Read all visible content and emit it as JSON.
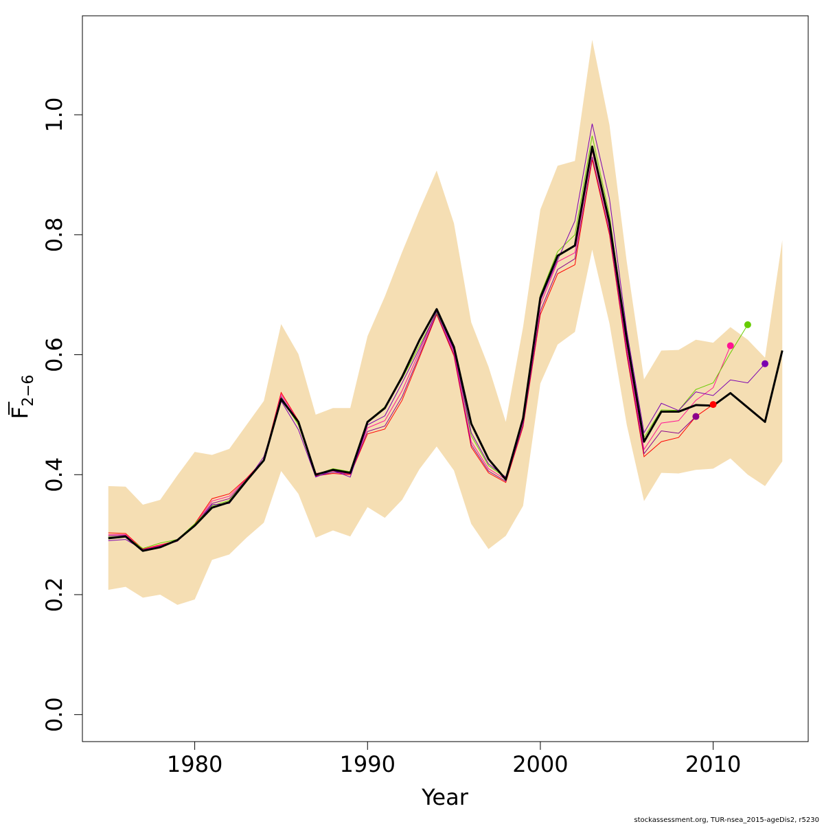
{
  "chart_data": {
    "type": "line",
    "xlabel": "Year",
    "ylabel_main": "F",
    "ylabel_sub": "2−6",
    "footer": "stockassessment.org, TUR-nsea_2015-ageDis2, r5230",
    "xlim": [
      1973.5,
      2015.5
    ],
    "ylim": [
      -0.045,
      1.165
    ],
    "x_ticks": [
      1980,
      1990,
      2000,
      2010
    ],
    "x_tick_labels": [
      "1980",
      "1990",
      "2000",
      "2010"
    ],
    "y_ticks": [
      0.0,
      0.2,
      0.4,
      0.6,
      0.8,
      1.0
    ],
    "y_tick_labels": [
      "0.0",
      "0.2",
      "0.4",
      "0.6",
      "0.8",
      "1.0"
    ],
    "band_color": "#F5DEB3",
    "confidence_band": {
      "x": [
        1975,
        1976,
        1977,
        1978,
        1979,
        1980,
        1981,
        1982,
        1983,
        1984,
        1985,
        1986,
        1987,
        1988,
        1989,
        1990,
        1991,
        1992,
        1993,
        1994,
        1995,
        1996,
        1997,
        1998,
        1999,
        2000,
        2001,
        2002,
        2003,
        2004,
        2005,
        2006,
        2007,
        2008,
        2009,
        2010,
        2011,
        2012,
        2013,
        2014
      ],
      "lower": [
        0.208,
        0.213,
        0.195,
        0.2,
        0.183,
        0.192,
        0.258,
        0.267,
        0.295,
        0.32,
        0.406,
        0.368,
        0.295,
        0.307,
        0.297,
        0.346,
        0.328,
        0.358,
        0.409,
        0.447,
        0.407,
        0.318,
        0.276,
        0.298,
        0.348,
        0.552,
        0.617,
        0.638,
        0.775,
        0.652,
        0.483,
        0.356,
        0.403,
        0.402,
        0.408,
        0.41,
        0.427,
        0.4,
        0.381,
        0.422
      ],
      "upper": [
        0.381,
        0.38,
        0.35,
        0.358,
        0.399,
        0.438,
        0.433,
        0.443,
        0.483,
        0.523,
        0.651,
        0.601,
        0.5,
        0.511,
        0.511,
        0.631,
        0.697,
        0.771,
        0.841,
        0.907,
        0.819,
        0.654,
        0.58,
        0.488,
        0.646,
        0.842,
        0.915,
        0.923,
        1.125,
        0.983,
        0.755,
        0.559,
        0.607,
        0.608,
        0.625,
        0.62,
        0.646,
        0.625,
        0.595,
        0.791
      ]
    },
    "main_series": {
      "color": "#000000",
      "x": [
        1975,
        1976,
        1977,
        1978,
        1979,
        1980,
        1981,
        1982,
        1983,
        1984,
        1985,
        1986,
        1987,
        1988,
        1989,
        1990,
        1991,
        1992,
        1993,
        1994,
        1995,
        1996,
        1997,
        1998,
        1999,
        2000,
        2001,
        2002,
        2003,
        2004,
        2005,
        2006,
        2007,
        2008,
        2009,
        2010,
        2011,
        2012,
        2013,
        2014
      ],
      "y": [
        0.294,
        0.297,
        0.273,
        0.279,
        0.291,
        0.315,
        0.345,
        0.354,
        0.39,
        0.424,
        0.526,
        0.488,
        0.4,
        0.408,
        0.403,
        0.488,
        0.511,
        0.563,
        0.624,
        0.676,
        0.613,
        0.485,
        0.426,
        0.392,
        0.494,
        0.695,
        0.765,
        0.782,
        0.947,
        0.82,
        0.626,
        0.455,
        0.505,
        0.505,
        0.516,
        0.515,
        0.536,
        0.512,
        0.488,
        0.607
      ]
    },
    "retro_series": [
      {
        "color": "#FF0000",
        "x": [
          1975,
          1976,
          1977,
          1978,
          1979,
          1980,
          1981,
          1982,
          1983,
          1984,
          1985,
          1986,
          1987,
          1988,
          1989,
          1990,
          1991,
          1992,
          1993,
          1994,
          1995,
          1996,
          1997,
          1998,
          1999,
          2000,
          2001,
          2002,
          2003,
          2004,
          2005,
          2006,
          2007,
          2008,
          2009,
          2010
        ],
        "y": [
          0.303,
          0.302,
          0.276,
          0.283,
          0.29,
          0.318,
          0.36,
          0.368,
          0.394,
          0.425,
          0.537,
          0.49,
          0.398,
          0.402,
          0.4,
          0.468,
          0.476,
          0.524,
          0.595,
          0.667,
          0.598,
          0.446,
          0.403,
          0.387,
          0.48,
          0.667,
          0.735,
          0.75,
          0.925,
          0.8,
          0.6,
          0.43,
          0.455,
          0.462,
          0.497,
          0.517
        ],
        "end_x": 2010,
        "end_y": 0.517
      },
      {
        "color": "#8B008B",
        "x": [
          1975,
          1976,
          1977,
          1978,
          1979,
          1980,
          1981,
          1982,
          1983,
          1984,
          1985,
          1986,
          1987,
          1988,
          1989,
          1990,
          1991,
          1992,
          1993,
          1994,
          1995,
          1996,
          1997,
          1998,
          1999,
          2000,
          2001,
          2002,
          2003,
          2004,
          2005,
          2006,
          2007,
          2008,
          2009
        ],
        "y": [
          0.298,
          0.299,
          0.274,
          0.281,
          0.289,
          0.316,
          0.352,
          0.36,
          0.392,
          0.424,
          0.53,
          0.487,
          0.397,
          0.404,
          0.401,
          0.472,
          0.481,
          0.53,
          0.599,
          0.669,
          0.601,
          0.45,
          0.406,
          0.389,
          0.483,
          0.673,
          0.742,
          0.76,
          0.93,
          0.805,
          0.605,
          0.435,
          0.473,
          0.469,
          0.497
        ],
        "end_x": 2009,
        "end_y": 0.497
      },
      {
        "color": "#FF1493",
        "x": [
          1975,
          1976,
          1977,
          1978,
          1979,
          1980,
          1981,
          1982,
          1983,
          1984,
          1985,
          1986,
          1987,
          1988,
          1989,
          1990,
          1991,
          1992,
          1993,
          1994,
          1995,
          1996,
          1997,
          1998,
          1999,
          2000,
          2001,
          2002,
          2003,
          2004,
          2005,
          2006,
          2007,
          2008,
          2009,
          2010,
          2011
        ],
        "y": [
          0.3,
          0.3,
          0.275,
          0.282,
          0.29,
          0.317,
          0.356,
          0.364,
          0.393,
          0.425,
          0.534,
          0.489,
          0.402,
          0.406,
          0.401,
          0.478,
          0.49,
          0.54,
          0.605,
          0.672,
          0.605,
          0.455,
          0.41,
          0.392,
          0.488,
          0.683,
          0.755,
          0.77,
          0.94,
          0.812,
          0.612,
          0.442,
          0.486,
          0.49,
          0.524,
          0.545,
          0.615
        ],
        "end_x": 2011,
        "end_y": 0.615
      },
      {
        "color": "#66CC00",
        "x": [
          1975,
          1976,
          1977,
          1978,
          1979,
          1980,
          1981,
          1982,
          1983,
          1984,
          1985,
          1986,
          1987,
          1988,
          1989,
          1990,
          1991,
          1992,
          1993,
          1994,
          1995,
          1996,
          1997,
          1998,
          1999,
          2000,
          2001,
          2002,
          2003,
          2004,
          2005,
          2006,
          2007,
          2008,
          2009,
          2010,
          2011,
          2012
        ],
        "y": [
          0.296,
          0.297,
          0.277,
          0.286,
          0.292,
          0.318,
          0.348,
          0.357,
          0.392,
          0.423,
          0.528,
          0.483,
          0.4,
          0.41,
          0.405,
          0.489,
          0.513,
          0.56,
          0.615,
          0.67,
          0.61,
          0.465,
          0.415,
          0.395,
          0.495,
          0.7,
          0.772,
          0.8,
          0.965,
          0.832,
          0.626,
          0.462,
          0.508,
          0.507,
          0.542,
          0.553,
          0.603,
          0.65
        ],
        "end_x": 2012,
        "end_y": 0.65
      },
      {
        "color": "#7B00B0",
        "x": [
          1975,
          1976,
          1977,
          1978,
          1979,
          1980,
          1981,
          1982,
          1983,
          1984,
          1985,
          1986,
          1987,
          1988,
          1989,
          1990,
          1991,
          1992,
          1993,
          1994,
          1995,
          1996,
          1997,
          1998,
          1999,
          2000,
          2001,
          2002,
          2003,
          2004,
          2005,
          2006,
          2007,
          2008,
          2009,
          2010,
          2011,
          2012,
          2013
        ],
        "y": [
          0.29,
          0.292,
          0.275,
          0.28,
          0.29,
          0.314,
          0.35,
          0.352,
          0.389,
          0.43,
          0.523,
          0.475,
          0.396,
          0.407,
          0.396,
          0.483,
          0.498,
          0.553,
          0.61,
          0.672,
          0.608,
          0.47,
          0.418,
          0.396,
          0.495,
          0.69,
          0.758,
          0.823,
          0.985,
          0.86,
          0.64,
          0.47,
          0.519,
          0.507,
          0.538,
          0.532,
          0.558,
          0.553,
          0.585
        ],
        "end_x": 2013,
        "end_y": 0.585
      }
    ]
  }
}
